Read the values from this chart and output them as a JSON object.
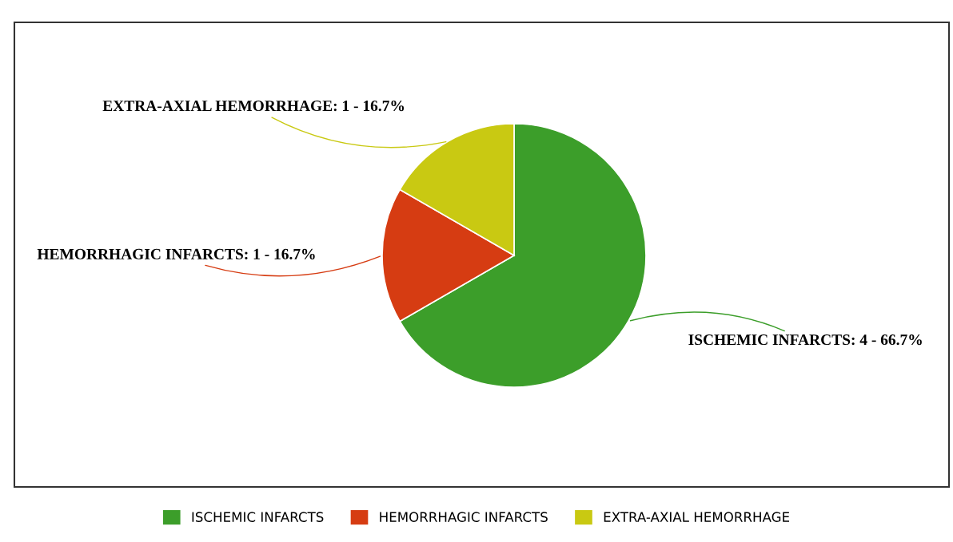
{
  "chart_data": {
    "type": "pie",
    "categories": [
      "ISCHEMIC INFARCTS",
      "HEMORRHAGIC INFARCTS",
      "EXTRA-AXIAL HEMORRHAGE"
    ],
    "values": [
      4,
      1,
      1
    ],
    "colors": [
      "#3c9e2a",
      "#d63c12",
      "#c9c912"
    ],
    "value_labels": [
      "ISCHEMIC INFARCTS: 4 - 66.7%",
      "HEMORRHAGIC INFARCTS: 1 - 16.7%",
      "EXTRA-AXIAL HEMORRHAGE: 1 - 16.7%"
    ],
    "legend": "bottom"
  }
}
